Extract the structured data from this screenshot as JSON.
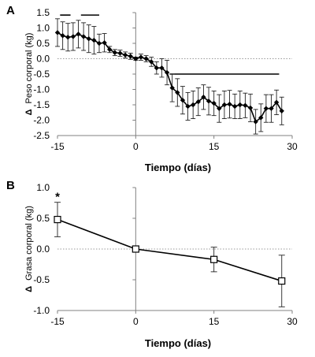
{
  "panels": [
    {
      "letter": "A",
      "chart_data": {
        "type": "line",
        "title": "",
        "xlabel": "Tiempo (días)",
        "ylabel": "Peso corporal (kg)",
        "ylabel_prefix": "Δ",
        "xlim": [
          -15,
          30
        ],
        "ylim": [
          -2.5,
          1.5
        ],
        "xticks": [
          -15,
          0,
          15,
          30
        ],
        "yticks": [
          1.5,
          1.0,
          0.5,
          0.0,
          -0.5,
          -1.0,
          -1.5,
          -2.0,
          -2.5
        ],
        "ytick_labels": [
          "1.5",
          "1.0",
          "0.5",
          "0.0",
          "-0.5",
          "-1.0",
          "-1.5",
          "-2.0",
          "-2.5"
        ],
        "zero_line": "dotted",
        "marker": "filled-diamond",
        "series": [
          {
            "x": [
              -15,
              -14,
              -13,
              -12,
              -11,
              -10,
              -9,
              -8,
              -7,
              -6,
              -5,
              -4,
              -3,
              -2,
              -1,
              0,
              1,
              2,
              3,
              4,
              5,
              6,
              7,
              8,
              9,
              10,
              11,
              12,
              13,
              14,
              15,
              16,
              17,
              18,
              19,
              20,
              21,
              22,
              23,
              24,
              25,
              26,
              27,
              28
            ],
            "y": [
              0.85,
              0.75,
              0.7,
              0.72,
              0.8,
              0.72,
              0.65,
              0.6,
              0.5,
              0.52,
              0.3,
              0.2,
              0.18,
              0.12,
              0.08,
              0.0,
              0.05,
              0.0,
              -0.1,
              -0.3,
              -0.3,
              -0.45,
              -0.95,
              -1.1,
              -1.35,
              -1.55,
              -1.5,
              -1.4,
              -1.25,
              -1.38,
              -1.45,
              -1.62,
              -1.5,
              -1.48,
              -1.55,
              -1.5,
              -1.52,
              -1.6,
              -2.05,
              -1.92,
              -1.62,
              -1.62,
              -1.42,
              -1.7
            ],
            "err": [
              0.45,
              0.45,
              0.45,
              0.45,
              0.45,
              0.45,
              0.45,
              0.45,
              0.3,
              0.3,
              0.1,
              0.1,
              0.1,
              0.1,
              0.1,
              0.05,
              0.1,
              0.1,
              0.15,
              0.2,
              0.3,
              0.4,
              0.45,
              0.45,
              0.45,
              0.45,
              0.45,
              0.45,
              0.4,
              0.45,
              0.4,
              0.45,
              0.45,
              0.45,
              0.4,
              0.45,
              0.4,
              0.45,
              0.4,
              0.45,
              0.45,
              0.45,
              0.4,
              0.45
            ]
          }
        ],
        "significance_bars": [
          {
            "x1": -14.5,
            "x2": -12.5,
            "y": 1.42
          },
          {
            "x1": -10.5,
            "x2": -7,
            "y": 1.42
          },
          {
            "x1": 6.5,
            "x2": 27.5,
            "y": -0.5
          }
        ]
      }
    },
    {
      "letter": "B",
      "chart_data": {
        "type": "line",
        "title": "",
        "xlabel": "Tiempo (días)",
        "ylabel": "Grasa corporal (kg)",
        "ylabel_prefix": "Δ",
        "xlim": [
          -15,
          30
        ],
        "ylim": [
          -1.0,
          1.0
        ],
        "xticks": [
          -15,
          0,
          15,
          30
        ],
        "yticks": [
          1.0,
          0.5,
          0.0,
          -0.5,
          -1.0
        ],
        "ytick_labels": [
          "1.0",
          "0.5",
          "0.0",
          "-0.5",
          "-1.0"
        ],
        "zero_line": "dotted",
        "marker": "open-square",
        "series": [
          {
            "x": [
              -15,
              0,
              15,
              28
            ],
            "y": [
              0.48,
              0.0,
              -0.17,
              -0.52
            ],
            "err": [
              0.28,
              0.0,
              0.2,
              0.42
            ]
          }
        ],
        "annotations": [
          {
            "text": "*",
            "x": -15
          }
        ]
      }
    }
  ]
}
